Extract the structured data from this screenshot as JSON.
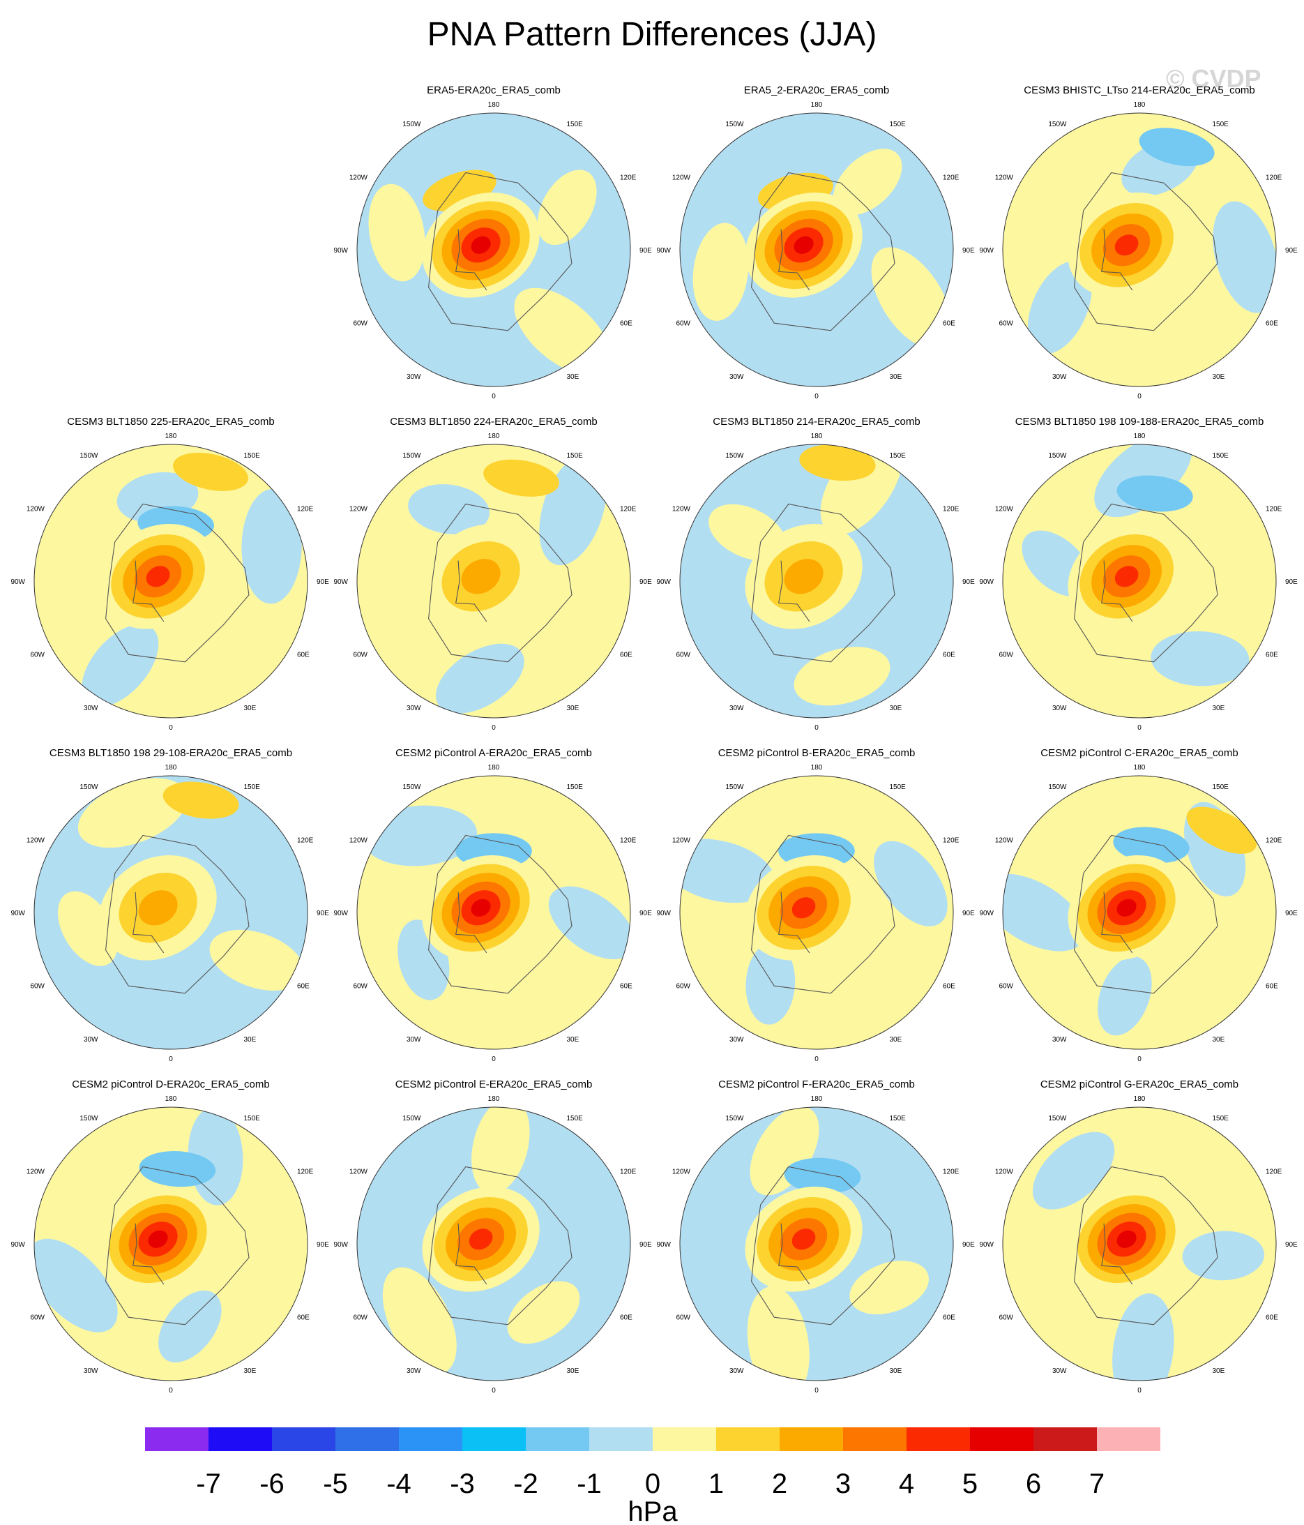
{
  "chart_data": {
    "type": "polar-contour-map-grid",
    "title": "PNA Pattern Differences (JJA)",
    "watermark": "© CVDP",
    "projection": "north-polar-stereographic",
    "longitude_labels": [
      "180",
      "150E",
      "120E",
      "90E",
      "60E",
      "30E",
      "0",
      "30W",
      "60W",
      "90W",
      "120W",
      "150W"
    ],
    "colorbar": {
      "unit": "hPa",
      "tick_labels": [
        "-7",
        "-6",
        "-5",
        "-4",
        "-3",
        "-2",
        "-1",
        "0",
        "1",
        "2",
        "3",
        "4",
        "5",
        "6",
        "7"
      ],
      "colors": [
        "#8B2BF0",
        "#1F0CF6",
        "#2A46E6",
        "#2F6FE8",
        "#2B93F5",
        "#0BC0F5",
        "#74C9F3",
        "#B2DEF2",
        "#FDF7A0",
        "#FDD330",
        "#FDAA00",
        "#FC7600",
        "#FB2A00",
        "#E60000",
        "#CC1A1A",
        "#FCB2B4"
      ]
    },
    "panels": [
      {
        "title": "ERA5-ERA20c_ERA5_comb",
        "peak_value": 5.5,
        "base": "mixed-blue",
        "features": [
          {
            "value": 1.5,
            "lon": 210,
            "dist": 0.5
          }
        ]
      },
      {
        "title": "ERA5_2-ERA20c_ERA5_comb",
        "peak_value": 5.5,
        "base": "mixed-blue",
        "features": [
          {
            "value": 1.5,
            "lon": 200,
            "dist": 0.45
          }
        ]
      },
      {
        "title": "CESM3 BHISTC_LTso 214-ERA20c_ERA5_comb",
        "peak_value": 4.5,
        "base": "mixed-yellow",
        "features": [
          {
            "value": -1.5,
            "lon": 160,
            "dist": 0.8
          }
        ]
      },
      {
        "title": "CESM3 BLT1850 225-ERA20c_ERA5_comb",
        "peak_value": 4.5,
        "base": "mixed-yellow",
        "features": [
          {
            "value": 1.5,
            "lon": 160,
            "dist": 0.85
          },
          {
            "value": -1.5,
            "lon": 175,
            "dist": 0.42
          }
        ]
      },
      {
        "title": "CESM3 BLT1850 224-ERA20c_ERA5_comb",
        "peak_value": 2.5,
        "base": "mixed-yellow",
        "features": [
          {
            "value": 1.5,
            "lon": 165,
            "dist": 0.78
          }
        ]
      },
      {
        "title": "CESM3 BLT1850 214-ERA20c_ERA5_comb",
        "peak_value": 2.5,
        "base": "mixed-blue",
        "features": [
          {
            "value": 1.5,
            "lon": 170,
            "dist": 0.88
          }
        ]
      },
      {
        "title": "CESM3 BLT1850 198 109-188-ERA20c_ERA5_comb",
        "peak_value": 4.5,
        "base": "mixed-yellow",
        "features": [
          {
            "value": -1.5,
            "lon": 170,
            "dist": 0.65
          }
        ]
      },
      {
        "title": "CESM3 BLT1850 198 29-108-ERA20c_ERA5_comb",
        "peak_value": 2.5,
        "base": "mixed-blue",
        "features": [
          {
            "value": 1.5,
            "lon": 165,
            "dist": 0.85
          }
        ]
      },
      {
        "title": "CESM2 piControl A-ERA20c_ERA5_comb",
        "peak_value": 5.5,
        "base": "mixed-yellow",
        "features": [
          {
            "value": -1.5,
            "lon": 180,
            "dist": 0.45
          }
        ]
      },
      {
        "title": "CESM2 piControl B-ERA20c_ERA5_comb",
        "peak_value": 4.5,
        "base": "mixed-yellow",
        "features": [
          {
            "value": -1.5,
            "lon": 180,
            "dist": 0.45
          }
        ]
      },
      {
        "title": "CESM2 piControl C-ERA20c_ERA5_comb",
        "peak_value": 5.5,
        "base": "mixed-yellow",
        "features": [
          {
            "value": -1.5,
            "lon": 170,
            "dist": 0.5
          },
          {
            "value": 1.5,
            "lon": 135,
            "dist": 0.85
          }
        ]
      },
      {
        "title": "CESM2 piControl D-ERA20c_ERA5_comb",
        "peak_value": 5.5,
        "base": "mixed-yellow",
        "features": [
          {
            "value": -1.5,
            "lon": 175,
            "dist": 0.55
          }
        ]
      },
      {
        "title": "CESM2 piControl E-ERA20c_ERA5_comb",
        "peak_value": 4.5,
        "base": "mixed-blue",
        "features": []
      },
      {
        "title": "CESM2 piControl F-ERA20c_ERA5_comb",
        "peak_value": 4.5,
        "base": "mixed-blue",
        "features": [
          {
            "value": -1.5,
            "lon": 175,
            "dist": 0.5
          }
        ]
      },
      {
        "title": "CESM2 piControl G-ERA20c_ERA5_comb",
        "peak_value": 5.5,
        "base": "mixed-yellow",
        "features": []
      }
    ]
  }
}
